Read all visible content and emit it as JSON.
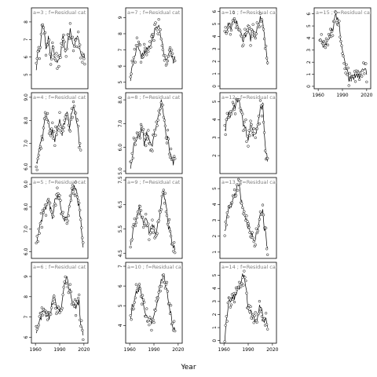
{
  "chart_data": {
    "type": "scatter",
    "xlabel": "Year",
    "ylabel": "",
    "xlim": [
      1955,
      2025
    ],
    "x_ticks": [
      1960,
      1990,
      2020
    ],
    "line_color": "#000000",
    "point_stroke": "#000000",
    "strip_color": "#7f7f7f",
    "panels": [
      {
        "id": "a3",
        "strip": "a=3 ; f=Residual cat",
        "ylim": [
          4.2,
          8.8
        ],
        "yticks": [
          5,
          6,
          7,
          8
        ],
        "knots": [
          [
            1961,
            5.2
          ],
          [
            1963,
            6.3
          ],
          [
            1966,
            6.5
          ],
          [
            1968,
            7.8
          ],
          [
            1971,
            7.4
          ],
          [
            1973,
            6.5
          ],
          [
            1976,
            7.0
          ],
          [
            1979,
            6.0
          ],
          [
            1982,
            6.8
          ],
          [
            1985,
            5.9
          ],
          [
            1988,
            5.7
          ],
          [
            1991,
            6.1
          ],
          [
            1994,
            7.1
          ],
          [
            1997,
            6.2
          ],
          [
            2000,
            6.8
          ],
          [
            2003,
            7.5
          ],
          [
            2006,
            6.6
          ],
          [
            2009,
            6.9
          ],
          [
            2012,
            7.3
          ],
          [
            2015,
            6.5
          ],
          [
            2018,
            6.2
          ],
          [
            2021,
            6.0
          ]
        ]
      },
      {
        "id": "a7",
        "strip": "a=7 ; f=Residual cat",
        "ylim": [
          4.6,
          9.6
        ],
        "yticks": [
          5,
          6,
          7,
          8,
          9
        ],
        "knots": [
          [
            1961,
            5.0
          ],
          [
            1963,
            6.0
          ],
          [
            1966,
            6.6
          ],
          [
            1969,
            7.2
          ],
          [
            1972,
            6.9
          ],
          [
            1975,
            6.5
          ],
          [
            1978,
            6.8
          ],
          [
            1981,
            7.0
          ],
          [
            1984,
            7.2
          ],
          [
            1987,
            7.6
          ],
          [
            1990,
            8.0
          ],
          [
            1993,
            8.4
          ],
          [
            1996,
            8.3
          ],
          [
            1999,
            7.8
          ],
          [
            2002,
            6.8
          ],
          [
            2005,
            6.3
          ],
          [
            2008,
            6.6
          ],
          [
            2011,
            6.9
          ],
          [
            2014,
            6.4
          ],
          [
            2016,
            6.6
          ]
        ]
      },
      {
        "id": "a11",
        "strip": "a=11 ; f=Residual cat",
        "ylim": [
          -0.2,
          6.3
        ],
        "yticks": [
          0,
          1,
          2,
          3,
          4,
          5,
          6
        ],
        "knots": [
          [
            1961,
            4.2
          ],
          [
            1963,
            4.6
          ],
          [
            1966,
            4.9
          ],
          [
            1969,
            4.5
          ],
          [
            1972,
            5.4
          ],
          [
            1975,
            5.1
          ],
          [
            1978,
            4.7
          ],
          [
            1981,
            4.1
          ],
          [
            1984,
            3.8
          ],
          [
            1987,
            4.2
          ],
          [
            1990,
            4.3
          ],
          [
            1993,
            3.9
          ],
          [
            1996,
            4.6
          ],
          [
            1999,
            4.0
          ],
          [
            2002,
            4.8
          ],
          [
            2005,
            5.6
          ],
          [
            2008,
            5.2
          ],
          [
            2010,
            4.0
          ],
          [
            2012,
            2.8
          ],
          [
            2014,
            1.8
          ]
        ]
      },
      {
        "id": "a15",
        "strip": "a=15 ; f=Residual cat",
        "ylim": [
          -0.2,
          6.5
        ],
        "yticks": [
          0,
          1,
          2,
          3,
          4,
          5,
          6
        ],
        "knots": [
          [
            1962,
            3.8
          ],
          [
            1965,
            3.5
          ],
          [
            1968,
            3.2
          ],
          [
            1971,
            3.6
          ],
          [
            1974,
            3.9
          ],
          [
            1977,
            4.5
          ],
          [
            1980,
            5.6
          ],
          [
            1983,
            5.8
          ],
          [
            1986,
            5.0
          ],
          [
            1988,
            4.0
          ],
          [
            1990,
            3.0
          ],
          [
            1992,
            2.4
          ],
          [
            1994,
            1.6
          ],
          [
            1996,
            1.2
          ],
          [
            1998,
            0.6
          ],
          [
            2012,
            0.9
          ],
          [
            2015,
            1.3
          ],
          [
            2018,
            1.6
          ],
          [
            2020,
            1.0
          ]
        ]
      },
      {
        "id": "a4",
        "strip": "a=4 ; f=Residual cat",
        "ylim": [
          5.7,
          9.2
        ],
        "yticks": [
          6.0,
          7.0,
          8.0,
          9.0
        ],
        "knots": [
          [
            1961,
            6.1
          ],
          [
            1963,
            6.4
          ],
          [
            1966,
            7.0
          ],
          [
            1969,
            7.3
          ],
          [
            1972,
            8.1
          ],
          [
            1975,
            8.0
          ],
          [
            1978,
            7.6
          ],
          [
            1981,
            7.5
          ],
          [
            1984,
            7.2
          ],
          [
            1987,
            7.6
          ],
          [
            1990,
            8.2
          ],
          [
            1993,
            7.5
          ],
          [
            1996,
            7.9
          ],
          [
            1999,
            8.3
          ],
          [
            2002,
            7.8
          ],
          [
            2005,
            8.4
          ],
          [
            2008,
            8.6
          ],
          [
            2011,
            8.0
          ],
          [
            2014,
            7.2
          ],
          [
            2016,
            6.8
          ]
        ]
      },
      {
        "id": "a8",
        "strip": "a=8 ; f=Residual cat",
        "ylim": [
          4.9,
          8.3
        ],
        "yticks": [
          5.0,
          6.0,
          7.0,
          8.0
        ],
        "knots": [
          [
            1961,
            5.0
          ],
          [
            1963,
            5.6
          ],
          [
            1966,
            6.2
          ],
          [
            1969,
            6.5
          ],
          [
            1972,
            6.4
          ],
          [
            1975,
            6.8
          ],
          [
            1978,
            6.2
          ],
          [
            1981,
            6.5
          ],
          [
            1984,
            6.3
          ],
          [
            1987,
            6.0
          ],
          [
            1990,
            6.4
          ],
          [
            1993,
            6.9
          ],
          [
            1996,
            7.3
          ],
          [
            1999,
            7.9
          ],
          [
            2002,
            7.4
          ],
          [
            2005,
            6.6
          ],
          [
            2008,
            6.2
          ],
          [
            2011,
            5.6
          ],
          [
            2014,
            5.3
          ],
          [
            2016,
            5.8
          ]
        ]
      },
      {
        "id": "a12",
        "strip": "a=12 ; f=Residual cat",
        "ylim": [
          1.0,
          5.5
        ],
        "yticks": [
          2,
          3,
          4,
          5
        ],
        "knots": [
          [
            1961,
            3.3
          ],
          [
            1963,
            3.9
          ],
          [
            1966,
            4.4
          ],
          [
            1969,
            4.2
          ],
          [
            1972,
            4.6
          ],
          [
            1975,
            4.9
          ],
          [
            1978,
            5.1
          ],
          [
            1981,
            4.7
          ],
          [
            1984,
            3.8
          ],
          [
            1987,
            3.5
          ],
          [
            1990,
            2.9
          ],
          [
            1993,
            3.6
          ],
          [
            1996,
            3.2
          ],
          [
            1999,
            3.0
          ],
          [
            2002,
            3.8
          ],
          [
            2005,
            4.5
          ],
          [
            2008,
            4.9
          ],
          [
            2010,
            3.2
          ],
          [
            2012,
            2.2
          ],
          [
            2014,
            1.6
          ]
        ]
      },
      {
        "id": "a5",
        "strip": "a=5 ; f=Residual cat",
        "ylim": [
          5.7,
          9.3
        ],
        "yticks": [
          6.0,
          7.0,
          8.0,
          9.0
        ],
        "knots": [
          [
            1961,
            6.2
          ],
          [
            1963,
            6.8
          ],
          [
            1966,
            7.2
          ],
          [
            1969,
            7.5
          ],
          [
            1972,
            7.9
          ],
          [
            1975,
            8.3
          ],
          [
            1978,
            8.0
          ],
          [
            1981,
            7.6
          ],
          [
            1984,
            8.3
          ],
          [
            1987,
            8.6
          ],
          [
            1990,
            8.2
          ],
          [
            1993,
            7.7
          ],
          [
            1996,
            7.3
          ],
          [
            1999,
            7.6
          ],
          [
            2002,
            8.0
          ],
          [
            2005,
            8.7
          ],
          [
            2008,
            9.0
          ],
          [
            2011,
            8.6
          ],
          [
            2014,
            8.0
          ],
          [
            2016,
            7.4
          ],
          [
            2019,
            6.2
          ]
        ]
      },
      {
        "id": "a9",
        "strip": "a=9 ; f=Residual cat",
        "ylim": [
          4.3,
          7.6
        ],
        "yticks": [
          4.5,
          5.5,
          6.5,
          7.5
        ],
        "knots": [
          [
            1961,
            4.7
          ],
          [
            1963,
            5.2
          ],
          [
            1966,
            5.6
          ],
          [
            1969,
            6.0
          ],
          [
            1972,
            6.3
          ],
          [
            1975,
            5.9
          ],
          [
            1978,
            5.7
          ],
          [
            1981,
            6.0
          ],
          [
            1984,
            5.4
          ],
          [
            1987,
            5.5
          ],
          [
            1990,
            5.6
          ],
          [
            1993,
            5.2
          ],
          [
            1996,
            5.9
          ],
          [
            1999,
            6.6
          ],
          [
            2002,
            7.0
          ],
          [
            2005,
            6.4
          ],
          [
            2008,
            5.6
          ],
          [
            2011,
            5.3
          ],
          [
            2014,
            4.8
          ],
          [
            2016,
            4.7
          ]
        ]
      },
      {
        "id": "a13",
        "strip": "a=13 ; f=Residual cat",
        "ylim": [
          0.6,
          5.7
        ],
        "yticks": [
          1,
          2,
          3,
          4,
          5
        ],
        "knots": [
          [
            1961,
            2.1
          ],
          [
            1963,
            3.0
          ],
          [
            1966,
            3.9
          ],
          [
            1969,
            3.8
          ],
          [
            1972,
            4.3
          ],
          [
            1975,
            4.8
          ],
          [
            1978,
            5.3
          ],
          [
            1981,
            4.4
          ],
          [
            1984,
            3.7
          ],
          [
            1987,
            3.1
          ],
          [
            1990,
            2.6
          ],
          [
            1993,
            2.3
          ],
          [
            1996,
            1.8
          ],
          [
            1999,
            1.9
          ],
          [
            2002,
            2.6
          ],
          [
            2005,
            3.4
          ],
          [
            2008,
            3.5
          ],
          [
            2010,
            2.6
          ],
          [
            2012,
            1.9
          ],
          [
            2014,
            1.2
          ]
        ]
      },
      {
        "id": "a6",
        "strip": "a=6 ; f=Residual cat",
        "ylim": [
          5.7,
          9.7
        ],
        "yticks": [
          6,
          7,
          8,
          9
        ],
        "knots": [
          [
            1961,
            6.0
          ],
          [
            1963,
            6.5
          ],
          [
            1966,
            6.9
          ],
          [
            1969,
            7.3
          ],
          [
            1972,
            7.2
          ],
          [
            1975,
            6.9
          ],
          [
            1978,
            7.1
          ],
          [
            1981,
            7.7
          ],
          [
            1984,
            8.1
          ],
          [
            1987,
            7.5
          ],
          [
            1990,
            7.1
          ],
          [
            1993,
            7.6
          ],
          [
            1996,
            8.5
          ],
          [
            1999,
            9.0
          ],
          [
            2002,
            8.4
          ],
          [
            2005,
            7.9
          ],
          [
            2008,
            7.4
          ],
          [
            2011,
            7.6
          ],
          [
            2014,
            7.7
          ],
          [
            2016,
            6.8
          ],
          [
            2019,
            6.0
          ]
        ]
      },
      {
        "id": "a10",
        "strip": "a=10 ; f=Residual cat",
        "ylim": [
          3.1,
          7.2
        ],
        "yticks": [
          4,
          5,
          6,
          7
        ],
        "knots": [
          [
            1961,
            4.5
          ],
          [
            1963,
            4.9
          ],
          [
            1966,
            5.3
          ],
          [
            1969,
            5.7
          ],
          [
            1972,
            6.0
          ],
          [
            1975,
            5.4
          ],
          [
            1978,
            4.9
          ],
          [
            1981,
            4.6
          ],
          [
            1984,
            4.3
          ],
          [
            1987,
            4.2
          ],
          [
            1990,
            4.5
          ],
          [
            1993,
            5.0
          ],
          [
            1996,
            5.7
          ],
          [
            1999,
            6.3
          ],
          [
            2002,
            6.6
          ],
          [
            2005,
            6.0
          ],
          [
            2008,
            5.2
          ],
          [
            2011,
            4.5
          ],
          [
            2014,
            3.8
          ],
          [
            2016,
            3.8
          ]
        ]
      },
      {
        "id": "a14",
        "strip": "a=14 ; f=Residual cat",
        "ylim": [
          -0.2,
          6.0
        ],
        "yticks": [
          0,
          1,
          2,
          3,
          4,
          5
        ],
        "knots": [
          [
            1961,
            0.1
          ],
          [
            1963,
            1.6
          ],
          [
            1966,
            3.0
          ],
          [
            1969,
            3.3
          ],
          [
            1972,
            3.5
          ],
          [
            1975,
            3.2
          ],
          [
            1978,
            3.9
          ],
          [
            1981,
            4.5
          ],
          [
            1984,
            5.0
          ],
          [
            1987,
            4.4
          ],
          [
            1990,
            2.6
          ],
          [
            1993,
            2.1
          ],
          [
            1996,
            1.8
          ],
          [
            1999,
            1.5
          ],
          [
            2002,
            1.9
          ],
          [
            2005,
            2.8
          ],
          [
            2008,
            2.1
          ],
          [
            2010,
            1.4
          ],
          [
            2012,
            1.8
          ],
          [
            2014,
            1.0
          ]
        ]
      }
    ]
  }
}
